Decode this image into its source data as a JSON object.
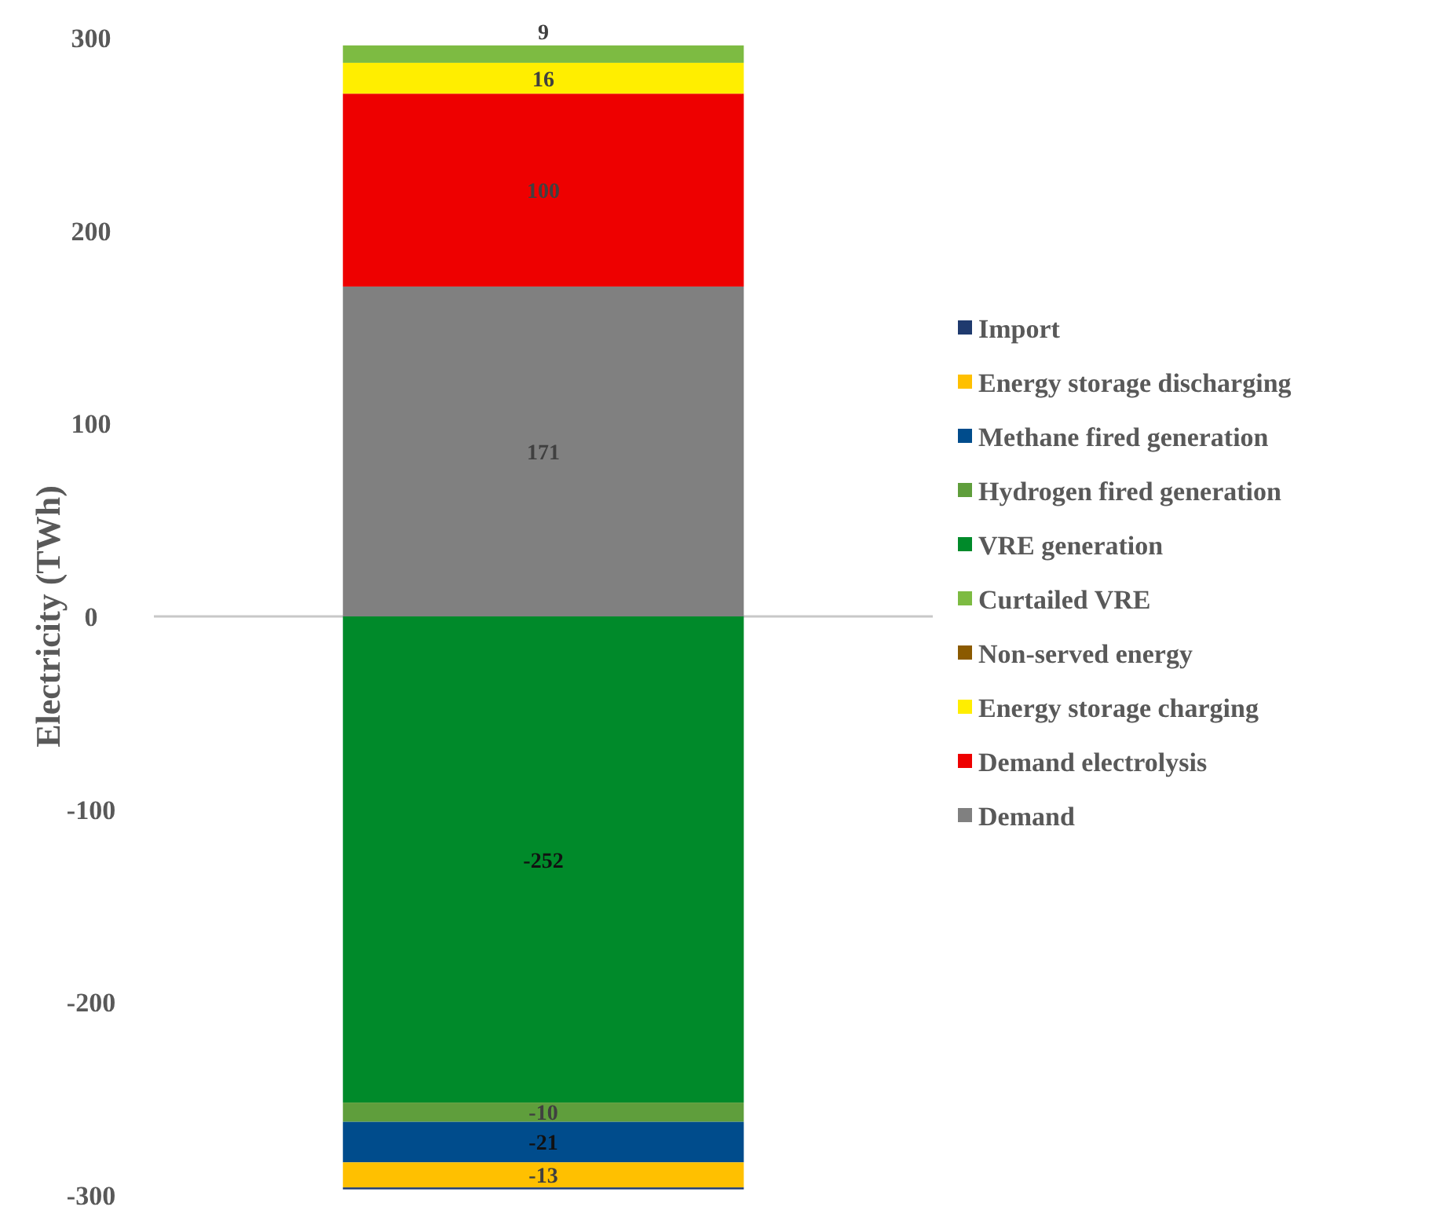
{
  "chart_data": {
    "type": "bar",
    "stacked": true,
    "ylabel": "Electricity (TWh)",
    "categories": [
      null
    ],
    "ylim": [
      -300,
      300
    ],
    "yticks": [
      -300,
      -200,
      -100,
      0,
      100,
      200,
      300
    ],
    "legend": "right",
    "series": [
      {
        "name": "Demand",
        "color": "#808080",
        "values": [
          171
        ],
        "value_labels": [
          "171"
        ]
      },
      {
        "name": "Demand electrolysis",
        "color": "#ee0000",
        "values": [
          100
        ],
        "value_labels": [
          "100"
        ]
      },
      {
        "name": "Energy storage charging",
        "color": "#ffee00",
        "values": [
          16
        ],
        "value_labels": [
          "16"
        ]
      },
      {
        "name": "Non-served energy",
        "color": "#8b5a00",
        "values": [
          0
        ],
        "value_labels": [
          null
        ]
      },
      {
        "name": "Curtailed VRE",
        "color": "#7dbb42",
        "values": [
          9
        ],
        "value_labels": [
          "9"
        ]
      },
      {
        "name": "VRE generation",
        "color": "#008a2a",
        "values": [
          -252
        ],
        "value_labels": [
          "-252"
        ]
      },
      {
        "name": "Hydrogen fired generation",
        "color": "#5f9e3c",
        "values": [
          -10
        ],
        "value_labels": [
          "-10"
        ]
      },
      {
        "name": "Methane fired generation",
        "color": "#004c8c",
        "values": [
          -21
        ],
        "value_labels": [
          "-21"
        ]
      },
      {
        "name": "Energy storage discharging",
        "color": "#ffc000",
        "values": [
          -13
        ],
        "value_labels": [
          "-13"
        ]
      },
      {
        "name": "Import",
        "color": "#1f3a6e",
        "values": [
          -1
        ],
        "value_labels": [
          null
        ]
      }
    ]
  }
}
